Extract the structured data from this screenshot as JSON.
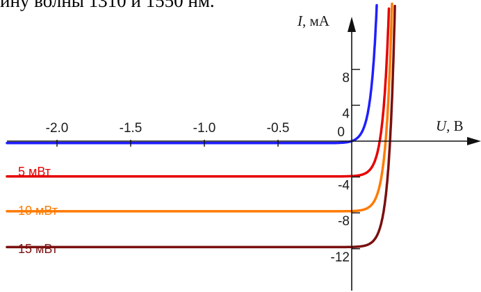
{
  "header_text": "ину волны 1310 и 1550 нм.",
  "chart_data": {
    "type": "line",
    "title": "",
    "xlabel": {
      "symbol": "U",
      "unit": ", В"
    },
    "ylabel": {
      "symbol": "I",
      "unit": ", мА"
    },
    "xlim": [
      -2.25,
      0.45
    ],
    "ylim": [
      -13,
      11.5
    ],
    "x_ticks": [
      {
        "value": -2.0,
        "label": "-2.0"
      },
      {
        "value": -1.5,
        "label": "-1.5"
      },
      {
        "value": -1.0,
        "label": "-1.0"
      },
      {
        "value": -0.5,
        "label": "-0.5"
      }
    ],
    "origin_label": "0",
    "y_ticks": [
      {
        "value": 8,
        "label": "8"
      },
      {
        "value": 4,
        "label": "4"
      },
      {
        "value": -4,
        "label": "-4"
      },
      {
        "value": -8,
        "label": "-8"
      },
      {
        "value": -12,
        "label": "-12"
      }
    ],
    "series": [
      {
        "name": "",
        "color": "#1f1fff",
        "photocurrent": 0,
        "voc": 0.0,
        "nvt": 0.04
      },
      {
        "name": "5 мВт",
        "color": "#e60000",
        "photocurrent": 3.9,
        "voc": 0.19,
        "nvt": 0.04
      },
      {
        "name": "10 мВт",
        "color": "#ff7a00",
        "photocurrent": 7.8,
        "voc": 0.23,
        "nvt": 0.04
      },
      {
        "name": "15 мВт",
        "color": "#7a1010",
        "photocurrent": 11.8,
        "voc": 0.26,
        "nvt": 0.04
      }
    ]
  }
}
